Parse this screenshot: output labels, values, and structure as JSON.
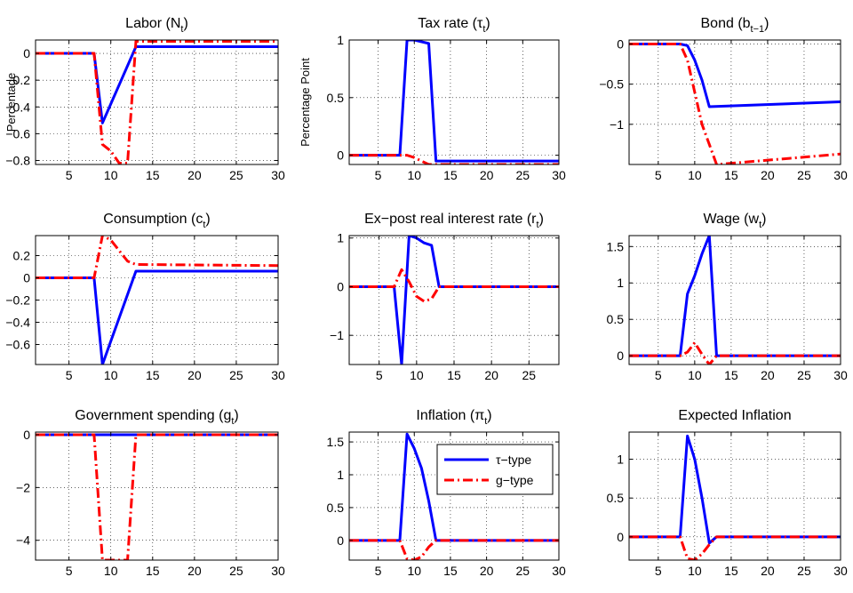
{
  "legend": {
    "entries": [
      {
        "label": "τ−type",
        "color": "#0000ff",
        "dash": "solid"
      },
      {
        "label": "g−type",
        "color": "#ff0000",
        "dash": "dashdot"
      }
    ]
  },
  "chart_data": [
    {
      "type": "line",
      "title": "Labor (N",
      "title_sub": "t",
      "title_suffix": ")",
      "ylabel": "Percentage",
      "xlim": [
        1,
        30
      ],
      "ylim": [
        -0.83,
        0.1
      ],
      "xticks": [
        5,
        10,
        15,
        20,
        25,
        30
      ],
      "xticklabels": [
        "5",
        "10",
        "15",
        "20",
        "25",
        "30"
      ],
      "yticks": [
        0,
        -0.2,
        -0.4,
        -0.6,
        -0.8
      ],
      "yticklabels": [
        "0",
        "−0.2",
        "−0.4",
        "−0.6",
        "−0.8"
      ],
      "grid": true,
      "series": [
        {
          "key": "tau",
          "values": [
            [
              1,
              0
            ],
            [
              8,
              0
            ],
            [
              9,
              -0.52
            ],
            [
              13,
              0.05
            ],
            [
              30,
              0.05
            ]
          ]
        },
        {
          "key": "g",
          "values": [
            [
              1,
              0
            ],
            [
              8,
              0
            ],
            [
              9,
              -0.68
            ],
            [
              10,
              -0.73
            ],
            [
              11,
              -0.82
            ],
            [
              12,
              -0.82
            ],
            [
              13,
              0.09
            ],
            [
              30,
              0.09
            ]
          ]
        }
      ]
    },
    {
      "type": "line",
      "title": "Tax rate (τ",
      "title_sub": "t",
      "title_suffix": ")",
      "ylabel": "Percentage Point",
      "xlim": [
        1,
        30
      ],
      "ylim": [
        -0.08,
        1.0
      ],
      "xticks": [
        5,
        10,
        15,
        20,
        25,
        30
      ],
      "xticklabels": [
        "5",
        "10",
        "15",
        "20",
        "25",
        "30"
      ],
      "yticks": [
        1,
        0.5,
        0
      ],
      "yticklabels": [
        "1",
        "0.5",
        "0"
      ],
      "grid": true,
      "series": [
        {
          "key": "tau",
          "values": [
            [
              1,
              0
            ],
            [
              8,
              0
            ],
            [
              9,
              1.0
            ],
            [
              10,
              1.0
            ],
            [
              12,
              0.97
            ],
            [
              13,
              -0.05
            ],
            [
              30,
              -0.05
            ]
          ]
        },
        {
          "key": "g",
          "values": [
            [
              1,
              0
            ],
            [
              9,
              0
            ],
            [
              10,
              -0.02
            ],
            [
              12,
              -0.08
            ],
            [
              30,
              -0.08
            ]
          ]
        }
      ]
    },
    {
      "type": "line",
      "title": "Bond (b",
      "title_sub": "t−1",
      "title_suffix": ")",
      "ylabel": "",
      "xlim": [
        1,
        30
      ],
      "ylim": [
        -1.5,
        0.05
      ],
      "xticks": [
        5,
        10,
        15,
        20,
        25,
        30
      ],
      "xticklabels": [
        "5",
        "10",
        "15",
        "20",
        "25",
        "30"
      ],
      "yticks": [
        0,
        -0.5,
        -1
      ],
      "yticklabels": [
        "0",
        "−0.5",
        "−1"
      ],
      "grid": true,
      "series": [
        {
          "key": "tau",
          "values": [
            [
              1,
              0
            ],
            [
              8,
              0
            ],
            [
              9,
              -0.02
            ],
            [
              10,
              -0.2
            ],
            [
              11,
              -0.45
            ],
            [
              12,
              -0.78
            ],
            [
              30,
              -0.72
            ]
          ]
        },
        {
          "key": "g",
          "values": [
            [
              1,
              0
            ],
            [
              8,
              0
            ],
            [
              9,
              -0.2
            ],
            [
              10,
              -0.6
            ],
            [
              11,
              -1.0
            ],
            [
              12,
              -1.25
            ],
            [
              13,
              -1.5
            ],
            [
              30,
              -1.37
            ]
          ]
        }
      ]
    },
    {
      "type": "line",
      "title": "Consumption (c",
      "title_sub": "t",
      "title_suffix": ")",
      "ylabel": "",
      "xlim": [
        1,
        30
      ],
      "ylim": [
        -0.78,
        0.38
      ],
      "xticks": [
        5,
        10,
        15,
        20,
        25,
        30
      ],
      "xticklabels": [
        "5",
        "10",
        "15",
        "20",
        "25",
        "30"
      ],
      "yticks": [
        0.2,
        0,
        -0.2,
        -0.4,
        -0.6
      ],
      "yticklabels": [
        "0.2",
        "0",
        "−0.2",
        "−0.4",
        "−0.6"
      ],
      "grid": true,
      "series": [
        {
          "key": "tau",
          "values": [
            [
              1,
              0
            ],
            [
              8,
              0
            ],
            [
              9,
              -0.78
            ],
            [
              13,
              0.06
            ],
            [
              30,
              0.06
            ]
          ]
        },
        {
          "key": "g",
          "values": [
            [
              1,
              0
            ],
            [
              8,
              0
            ],
            [
              9,
              0.38
            ],
            [
              10,
              0.34
            ],
            [
              12,
              0.15
            ],
            [
              13,
              0.12
            ],
            [
              30,
              0.11
            ]
          ]
        }
      ]
    },
    {
      "type": "line",
      "title": "Ex−post real interest rate (r",
      "title_sub": "t",
      "title_suffix": ")",
      "ylabel": "",
      "xlim": [
        1,
        29
      ],
      "ylim": [
        -1.6,
        1.05
      ],
      "xticks": [
        5,
        10,
        15,
        20,
        25
      ],
      "xticklabels": [
        "5",
        "10",
        "15",
        "20",
        "25"
      ],
      "yticks": [
        1,
        0,
        -1
      ],
      "yticklabels": [
        "1",
        "0",
        "−1"
      ],
      "grid": true,
      "series": [
        {
          "key": "tau",
          "values": [
            [
              1,
              0
            ],
            [
              7,
              0
            ],
            [
              8,
              -1.6
            ],
            [
              9,
              1.05
            ],
            [
              10,
              1.0
            ],
            [
              11,
              0.9
            ],
            [
              12,
              0.85
            ],
            [
              13,
              0
            ],
            [
              29,
              0
            ]
          ]
        },
        {
          "key": "g",
          "values": [
            [
              1,
              0
            ],
            [
              7,
              0
            ],
            [
              8,
              0.35
            ],
            [
              9,
              0.1
            ],
            [
              10,
              -0.2
            ],
            [
              11,
              -0.3
            ],
            [
              12,
              -0.25
            ],
            [
              13,
              0
            ],
            [
              29,
              0
            ]
          ]
        }
      ]
    },
    {
      "type": "line",
      "title": "Wage (w",
      "title_sub": "t",
      "title_suffix": ")",
      "ylabel": "",
      "xlim": [
        1,
        30
      ],
      "ylim": [
        -0.12,
        1.65
      ],
      "xticks": [
        5,
        10,
        15,
        20,
        25,
        30
      ],
      "xticklabels": [
        "5",
        "10",
        "15",
        "20",
        "25",
        "30"
      ],
      "yticks": [
        1.5,
        1,
        0.5,
        0
      ],
      "yticklabels": [
        "1.5",
        "1",
        "0.5",
        "0"
      ],
      "grid": true,
      "series": [
        {
          "key": "tau",
          "values": [
            [
              1,
              0
            ],
            [
              8,
              0
            ],
            [
              9,
              0.85
            ],
            [
              10,
              1.1
            ],
            [
              11,
              1.4
            ],
            [
              12,
              1.65
            ],
            [
              13,
              0
            ],
            [
              30,
              0
            ]
          ]
        },
        {
          "key": "g",
          "values": [
            [
              1,
              0
            ],
            [
              8,
              0
            ],
            [
              9,
              0.05
            ],
            [
              10,
              0.18
            ],
            [
              11,
              0.02
            ],
            [
              12,
              -0.12
            ],
            [
              13,
              0
            ],
            [
              30,
              0
            ]
          ]
        }
      ]
    },
    {
      "type": "line",
      "title": "Government spending (g",
      "title_sub": "t",
      "title_suffix": ")",
      "ylabel": "",
      "xlim": [
        1,
        30
      ],
      "ylim": [
        -4.75,
        0.1
      ],
      "xticks": [
        5,
        10,
        15,
        20,
        25,
        30
      ],
      "xticklabels": [
        "5",
        "10",
        "15",
        "20",
        "25",
        "30"
      ],
      "yticks": [
        0,
        -2,
        -4
      ],
      "yticklabels": [
        "0",
        "−2",
        "−4"
      ],
      "grid": true,
      "series": [
        {
          "key": "tau",
          "values": [
            [
              1,
              0
            ],
            [
              30,
              0
            ]
          ]
        },
        {
          "key": "g",
          "values": [
            [
              1,
              0
            ],
            [
              8,
              0
            ],
            [
              9,
              -4.75
            ],
            [
              12,
              -4.75
            ],
            [
              13,
              0
            ],
            [
              30,
              0
            ]
          ]
        }
      ]
    },
    {
      "type": "line",
      "title": "Inflation (π",
      "title_sub": "t",
      "title_suffix": ")",
      "ylabel": "",
      "xlim": [
        1,
        30
      ],
      "ylim": [
        -0.3,
        1.65
      ],
      "xticks": [
        5,
        10,
        15,
        20,
        25,
        30
      ],
      "xticklabels": [
        "5",
        "10",
        "15",
        "20",
        "25",
        "30"
      ],
      "yticks": [
        1.5,
        1,
        0.5,
        0
      ],
      "yticklabels": [
        "1.5",
        "1",
        "0.5",
        "0"
      ],
      "grid": true,
      "legend": true,
      "series": [
        {
          "key": "tau",
          "values": [
            [
              1,
              0
            ],
            [
              8,
              0
            ],
            [
              9,
              1.62
            ],
            [
              10,
              1.4
            ],
            [
              11,
              1.1
            ],
            [
              12,
              0.6
            ],
            [
              13,
              0
            ],
            [
              30,
              0
            ]
          ]
        },
        {
          "key": "g",
          "values": [
            [
              1,
              0
            ],
            [
              8,
              0
            ],
            [
              9,
              -0.28
            ],
            [
              10,
              -0.3
            ],
            [
              11,
              -0.25
            ],
            [
              12,
              -0.1
            ],
            [
              13,
              0
            ],
            [
              30,
              0
            ]
          ]
        }
      ]
    },
    {
      "type": "line",
      "title": "Expected Inflation",
      "title_sub": "",
      "title_suffix": "",
      "ylabel": "",
      "xlim": [
        1,
        30
      ],
      "ylim": [
        -0.3,
        1.35
      ],
      "xticks": [
        5,
        10,
        15,
        20,
        25,
        30
      ],
      "xticklabels": [
        "5",
        "10",
        "15",
        "20",
        "25",
        "30"
      ],
      "yticks": [
        1,
        0.5,
        0
      ],
      "yticklabels": [
        "1",
        "0.5",
        "0"
      ],
      "grid": true,
      "series": [
        {
          "key": "tau",
          "values": [
            [
              1,
              0
            ],
            [
              8,
              0
            ],
            [
              9,
              1.3
            ],
            [
              10,
              1.0
            ],
            [
              11,
              0.5
            ],
            [
              12,
              -0.08
            ],
            [
              13,
              0
            ],
            [
              30,
              0
            ]
          ]
        },
        {
          "key": "g",
          "values": [
            [
              1,
              0
            ],
            [
              8,
              0
            ],
            [
              9,
              -0.28
            ],
            [
              10,
              -0.3
            ],
            [
              11,
              -0.22
            ],
            [
              12,
              -0.1
            ],
            [
              13,
              0
            ],
            [
              30,
              0
            ]
          ]
        }
      ]
    }
  ]
}
